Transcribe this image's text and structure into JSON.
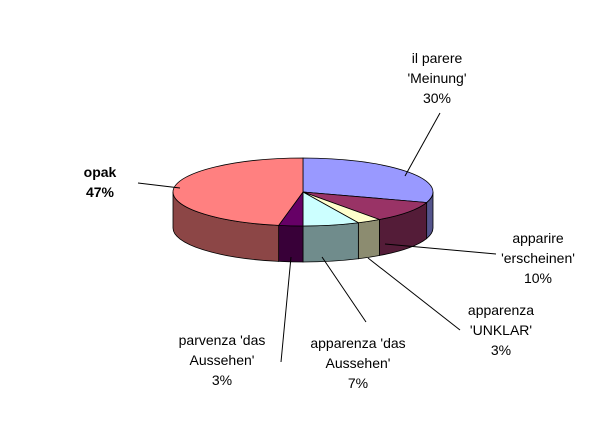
{
  "chart_data": {
    "type": "pie3d",
    "categories": [
      "il parere 'Meinung'",
      "apparire 'erscheinen'",
      "apparenza 'UNKLAR'",
      "apparenza 'das Aussehen'",
      "parvenza 'das Aussehen'",
      "opak"
    ],
    "values": [
      30,
      10,
      3,
      7,
      3,
      47
    ],
    "value_labels": [
      "30%",
      "10%",
      "3%",
      "7%",
      "3%",
      "47%"
    ],
    "colors": [
      "#9999ff",
      "#993366",
      "#ffffcc",
      "#ccffff",
      "#660066",
      "#ff8080"
    ]
  }
}
